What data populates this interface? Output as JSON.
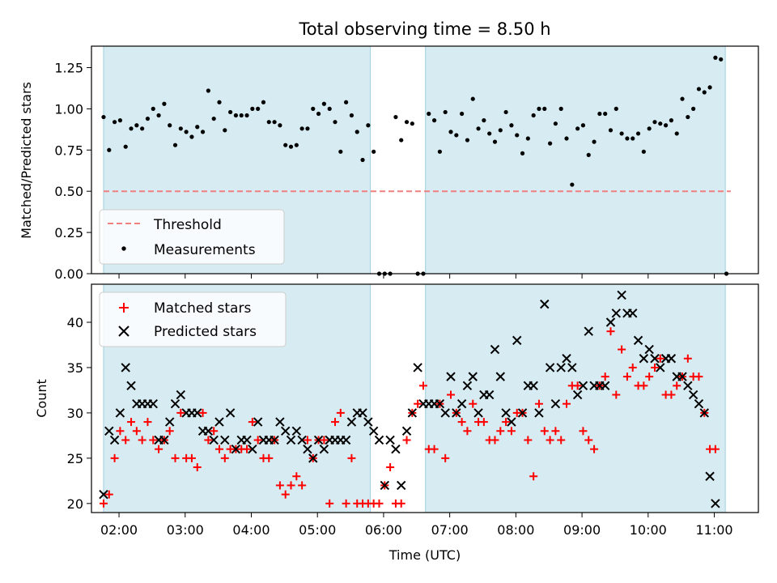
{
  "chart_data": [
    {
      "type": "scatter",
      "title": "Total observing time = 8.50 h",
      "xlabel": "",
      "ylabel": "Matched/Predicted stars",
      "ylim": [
        0,
        1.38
      ],
      "yticks": [
        "0.00",
        "0.25",
        "0.50",
        "0.75",
        "1.00",
        "1.25"
      ],
      "ytick_values": [
        0,
        0.25,
        0.5,
        0.75,
        1.0,
        1.25
      ],
      "xlim": [
        "01:35",
        "11:40"
      ],
      "shaded_intervals": [
        [
          "01:46",
          "05:48"
        ],
        [
          "06:38",
          "11:10"
        ]
      ],
      "threshold": {
        "name": "Threshold",
        "value": 0.5,
        "x_range": [
          "01:46",
          "11:15"
        ],
        "color": "#f08080"
      },
      "legend": {
        "position": "lower-left",
        "entries": [
          "Threshold",
          "Measurements"
        ]
      },
      "series": [
        {
          "name": "Measurements",
          "color": "#000000",
          "points": [
            [
              "01:46",
              0.95
            ],
            [
              "01:51",
              0.75
            ],
            [
              "01:56",
              0.92
            ],
            [
              "02:01",
              0.93
            ],
            [
              "02:06",
              0.77
            ],
            [
              "02:11",
              0.88
            ],
            [
              "02:16",
              0.9
            ],
            [
              "02:21",
              0.88
            ],
            [
              "02:26",
              0.94
            ],
            [
              "02:31",
              1.0
            ],
            [
              "02:36",
              0.96
            ],
            [
              "02:41",
              1.03
            ],
            [
              "02:46",
              0.9
            ],
            [
              "02:51",
              0.78
            ],
            [
              "02:56",
              0.88
            ],
            [
              "03:01",
              0.86
            ],
            [
              "03:06",
              0.83
            ],
            [
              "03:11",
              0.89
            ],
            [
              "03:16",
              0.86
            ],
            [
              "03:21",
              1.11
            ],
            [
              "03:26",
              0.94
            ],
            [
              "03:31",
              1.04
            ],
            [
              "03:36",
              0.87
            ],
            [
              "03:41",
              0.98
            ],
            [
              "03:46",
              0.96
            ],
            [
              "03:51",
              0.96
            ],
            [
              "03:56",
              0.96
            ],
            [
              "04:01",
              1.0
            ],
            [
              "04:06",
              1.0
            ],
            [
              "04:11",
              1.04
            ],
            [
              "04:16",
              0.92
            ],
            [
              "04:21",
              0.92
            ],
            [
              "04:26",
              0.9
            ],
            [
              "04:31",
              0.78
            ],
            [
              "04:36",
              0.77
            ],
            [
              "04:41",
              0.78
            ],
            [
              "04:46",
              0.88
            ],
            [
              "04:51",
              0.88
            ],
            [
              "04:56",
              1.0
            ],
            [
              "05:01",
              0.97
            ],
            [
              "05:06",
              1.03
            ],
            [
              "05:11",
              1.0
            ],
            [
              "05:16",
              0.92
            ],
            [
              "05:21",
              0.74
            ],
            [
              "05:26",
              1.04
            ],
            [
              "05:31",
              0.96
            ],
            [
              "05:36",
              0.86
            ],
            [
              "05:41",
              0.69
            ],
            [
              "05:46",
              0.9
            ],
            [
              "05:51",
              0.74
            ],
            [
              "05:56",
              0.0
            ],
            [
              "06:01",
              0.0
            ],
            [
              "06:06",
              0.0
            ],
            [
              "06:11",
              0.95
            ],
            [
              "06:16",
              0.81
            ],
            [
              "06:21",
              0.92
            ],
            [
              "06:26",
              0.91
            ],
            [
              "06:31",
              0.0
            ],
            [
              "06:36",
              0.0
            ],
            [
              "06:41",
              0.97
            ],
            [
              "06:46",
              0.93
            ],
            [
              "06:51",
              0.74
            ],
            [
              "06:56",
              0.98
            ],
            [
              "07:01",
              0.86
            ],
            [
              "07:06",
              0.84
            ],
            [
              "07:11",
              0.97
            ],
            [
              "07:16",
              0.81
            ],
            [
              "07:21",
              1.06
            ],
            [
              "07:26",
              0.88
            ],
            [
              "07:31",
              0.93
            ],
            [
              "07:36",
              0.85
            ],
            [
              "07:41",
              0.8
            ],
            [
              "07:46",
              0.87
            ],
            [
              "07:51",
              0.98
            ],
            [
              "07:56",
              0.9
            ],
            [
              "08:01",
              0.84
            ],
            [
              "08:06",
              0.73
            ],
            [
              "08:11",
              0.82
            ],
            [
              "08:16",
              0.96
            ],
            [
              "08:21",
              1.0
            ],
            [
              "08:26",
              1.0
            ],
            [
              "08:31",
              0.79
            ],
            [
              "08:36",
              0.91
            ],
            [
              "08:41",
              1.0
            ],
            [
              "08:46",
              0.82
            ],
            [
              "08:51",
              0.54
            ],
            [
              "08:56",
              0.88
            ],
            [
              "09:01",
              0.9
            ],
            [
              "09:06",
              0.72
            ],
            [
              "09:11",
              0.8
            ],
            [
              "09:16",
              0.97
            ],
            [
              "09:21",
              0.97
            ],
            [
              "09:26",
              0.87
            ],
            [
              "09:31",
              1.0
            ],
            [
              "09:36",
              0.85
            ],
            [
              "09:41",
              0.82
            ],
            [
              "09:46",
              0.82
            ],
            [
              "09:51",
              0.85
            ],
            [
              "09:56",
              0.74
            ],
            [
              "10:01",
              0.88
            ],
            [
              "10:06",
              0.92
            ],
            [
              "10:11",
              0.91
            ],
            [
              "10:16",
              0.9
            ],
            [
              "10:21",
              0.93
            ],
            [
              "10:26",
              0.85
            ],
            [
              "10:31",
              1.06
            ],
            [
              "10:36",
              0.95
            ],
            [
              "10:41",
              1.0
            ],
            [
              "10:46",
              1.12
            ],
            [
              "10:51",
              1.1
            ],
            [
              "10:56",
              1.13
            ],
            [
              "11:01",
              1.31
            ],
            [
              "11:06",
              1.3
            ],
            [
              "11:11",
              0.0
            ]
          ]
        }
      ]
    },
    {
      "type": "scatter",
      "title": "",
      "xlabel": "Time (UTC)",
      "ylabel": "Count",
      "ylim": [
        19,
        44.2
      ],
      "yticks": [
        "20",
        "25",
        "30",
        "35",
        "40"
      ],
      "ytick_values": [
        20,
        25,
        30,
        35,
        40
      ],
      "xlim": [
        "01:35",
        "11:40"
      ],
      "xticks": [
        "02:00",
        "03:00",
        "04:00",
        "05:00",
        "06:00",
        "07:00",
        "08:00",
        "09:00",
        "10:00",
        "11:00"
      ],
      "shaded_intervals": [
        [
          "01:46",
          "05:48"
        ],
        [
          "06:38",
          "11:10"
        ]
      ],
      "legend": {
        "position": "top-left",
        "entries": [
          "Matched stars",
          "Predicted stars"
        ]
      },
      "series": [
        {
          "name": "Matched stars",
          "color": "#ff0000",
          "marker": "plus",
          "values": [
            20,
            21,
            25,
            28,
            27,
            29,
            28,
            27,
            29,
            27,
            26,
            27,
            28,
            25,
            30,
            25,
            25,
            24,
            30,
            27,
            28,
            26,
            25,
            26,
            26,
            26,
            26,
            29,
            27,
            25,
            25,
            27,
            22,
            21,
            22,
            23,
            22,
            27,
            25,
            27,
            27,
            20,
            29,
            30,
            20,
            25,
            20,
            20,
            20,
            20,
            20,
            22,
            24,
            20,
            20,
            27,
            30,
            31,
            33,
            26,
            26,
            31,
            25,
            32,
            30,
            29,
            28,
            31,
            29,
            29,
            27,
            27,
            28,
            29,
            28,
            30,
            30,
            27,
            23,
            31,
            28,
            27,
            28,
            27,
            31,
            33,
            33,
            28,
            27,
            26,
            33,
            34,
            39,
            32,
            37,
            34,
            35,
            33,
            33,
            34,
            35,
            36,
            32,
            32,
            33,
            34,
            36,
            34,
            34,
            30,
            26,
            26
          ]
        },
        {
          "name": "Predicted stars",
          "color": "#000000",
          "marker": "x",
          "values": [
            21,
            28,
            27,
            30,
            35,
            33,
            31,
            31,
            31,
            31,
            27,
            27,
            29,
            31,
            32,
            30,
            30,
            30,
            28,
            28,
            27,
            29,
            27,
            30,
            26,
            27,
            27,
            26,
            29,
            27,
            27,
            27,
            29,
            28,
            27,
            28,
            27,
            26,
            25,
            27,
            26,
            27,
            27,
            27,
            27,
            29,
            30,
            30,
            29,
            28,
            27,
            22,
            27,
            26,
            22,
            28,
            30,
            35,
            31,
            31,
            31,
            31,
            30,
            34,
            30,
            31,
            33,
            34,
            30,
            32,
            32,
            37,
            34,
            30,
            29,
            38,
            30,
            33,
            33,
            30,
            42,
            35,
            31,
            35,
            36,
            35,
            32,
            33,
            39,
            33,
            33,
            33,
            40,
            41,
            43,
            41,
            41,
            38,
            36,
            37,
            36,
            35,
            36,
            36,
            34,
            34,
            33,
            32,
            31,
            30,
            23,
            20
          ]
        }
      ]
    }
  ]
}
